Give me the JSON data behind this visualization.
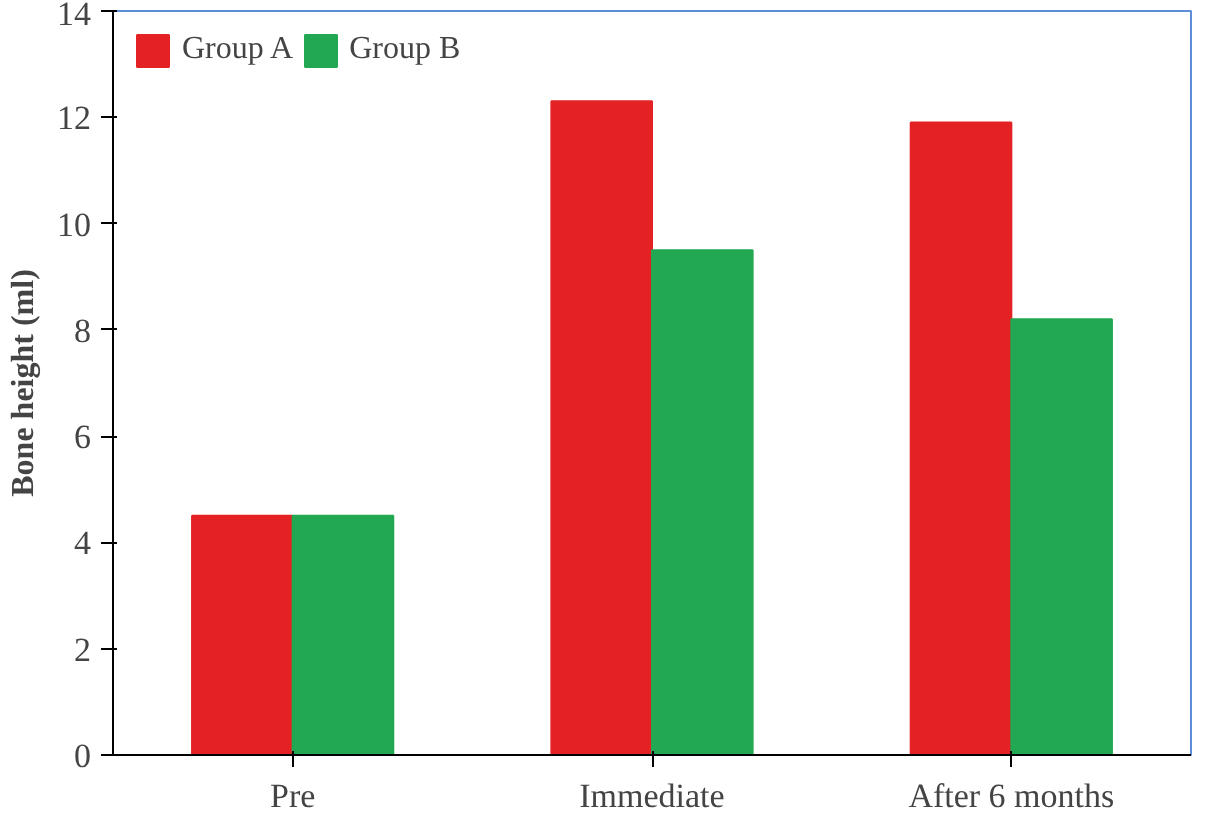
{
  "chart_data": {
    "type": "bar",
    "ylabel": "Bone height (ml)",
    "categories": [
      "Pre",
      "Immediate",
      "After 6 months"
    ],
    "series": [
      {
        "name": "Group A",
        "color": "#e42224",
        "values": [
          4.5,
          12.3,
          11.9
        ]
      },
      {
        "name": "Group B",
        "color": "#22a852",
        "values": [
          4.5,
          9.5,
          8.2
        ]
      }
    ],
    "ylim": [
      0,
      14
    ],
    "yticks": [
      0,
      2,
      4,
      6,
      8,
      10,
      12,
      14
    ],
    "grid": false,
    "legend": "top"
  }
}
